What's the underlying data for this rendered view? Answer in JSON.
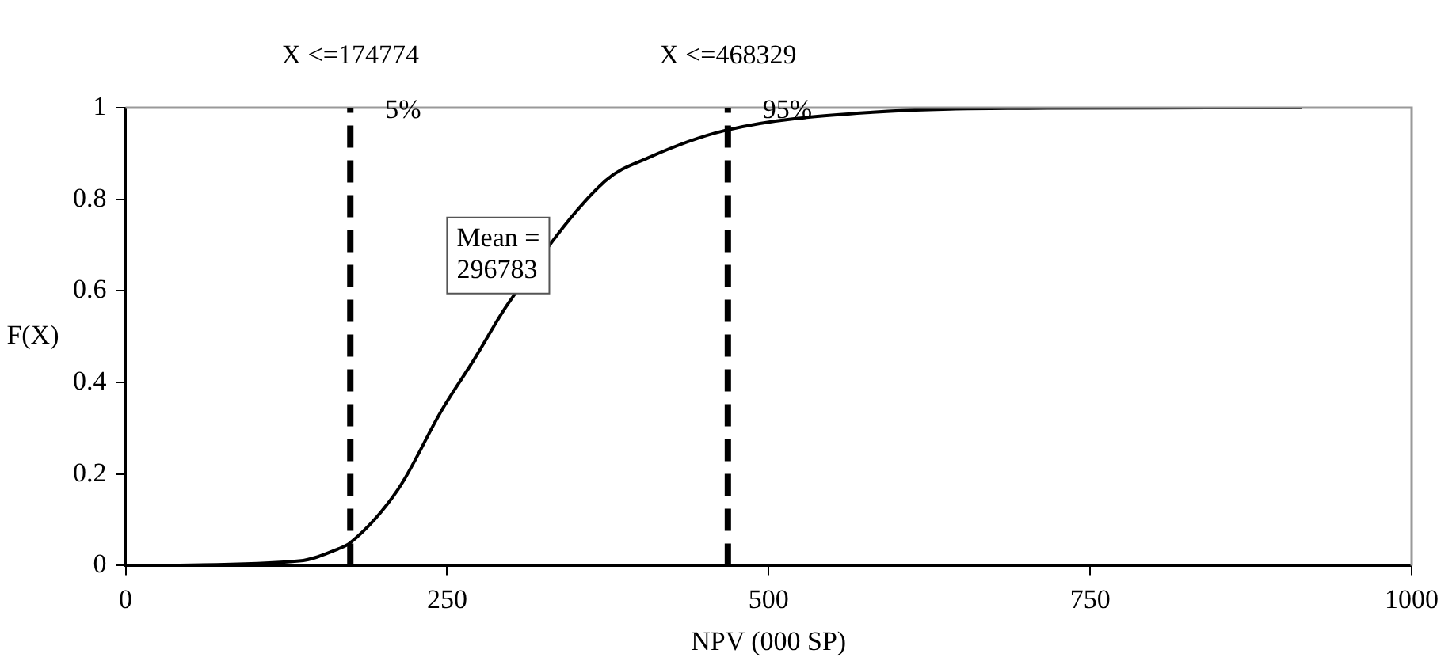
{
  "chart_data": {
    "type": "line",
    "xlabel": "NPV (000 SP)",
    "ylabel": "F(X)",
    "series": [
      {
        "color": "#000000",
        "x": [
          15,
          135,
          165,
          174.774,
          212,
          246,
          271,
          297,
          373,
          406,
          466,
          581,
          717,
          915
        ],
        "values": [
          0,
          0.01,
          0.036,
          0.05,
          0.167,
          0.34,
          0.45,
          0.57,
          0.84,
          0.89,
          0.95,
          0.99,
          0.999,
          1
        ]
      }
    ],
    "xlim": [
      0,
      1000
    ],
    "xticks": [
      0,
      250,
      500,
      750,
      1000
    ],
    "ylim": [
      0,
      1
    ],
    "yticks": [
      0,
      0.2,
      0.4,
      0.6,
      0.8,
      1
    ],
    "ref_lines": [
      {
        "axis": "x",
        "value": 174.774,
        "label": "X <=174774",
        "color": "#000000",
        "line_style": "dashed"
      },
      {
        "axis": "x",
        "value": 468.329,
        "label": "X <=468329",
        "color": "#000000",
        "line_style": "dashed"
      }
    ],
    "annotations": [
      {
        "text": "5%",
        "x": 174.774,
        "y": 1
      },
      {
        "text": "95%",
        "x": 468.329,
        "y": 1
      },
      "Mean =\n296783"
    ],
    "grid": false,
    "legend": false,
    "marker": "none",
    "line_style": "solid"
  }
}
